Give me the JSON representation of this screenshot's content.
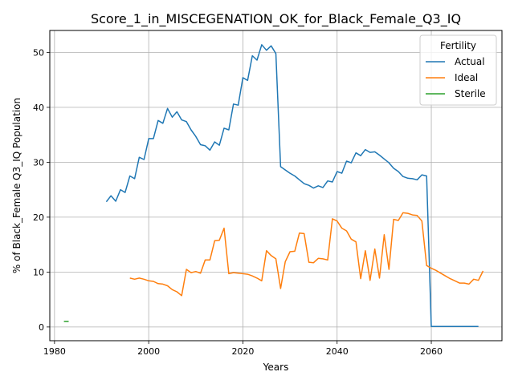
{
  "chart_data": {
    "type": "line",
    "title": "Score_1_in_MISCEGENATION_OK_for_Black_Female_Q3_IQ",
    "xlabel": "Years",
    "ylabel": "% of Black_Female Q3_IQ Population",
    "xlim": [
      1979,
      2075
    ],
    "ylim": [
      -2.5,
      54
    ],
    "xticks": [
      1980,
      2000,
      2020,
      2040,
      2060
    ],
    "yticks": [
      0,
      10,
      20,
      30,
      40,
      50
    ],
    "grid": true,
    "legend": {
      "title": "Fertility",
      "placement": "top-right"
    },
    "series": [
      {
        "name": "Actual",
        "color": "#1f77b4",
        "points": [
          [
            1991,
            22.8
          ],
          [
            1992,
            23.9
          ],
          [
            1993,
            22.9
          ],
          [
            1994,
            25.0
          ],
          [
            1995,
            24.5
          ],
          [
            1996,
            27.5
          ],
          [
            1997,
            27.0
          ],
          [
            1998,
            30.9
          ],
          [
            1999,
            30.5
          ],
          [
            2000,
            34.3
          ],
          [
            2001,
            34.3
          ],
          [
            2002,
            37.6
          ],
          [
            2003,
            37.1
          ],
          [
            2004,
            39.8
          ],
          [
            2005,
            38.2
          ],
          [
            2006,
            39.2
          ],
          [
            2007,
            37.7
          ],
          [
            2008,
            37.4
          ],
          [
            2009,
            35.9
          ],
          [
            2010,
            34.7
          ],
          [
            2011,
            33.2
          ],
          [
            2012,
            33.0
          ],
          [
            2013,
            32.2
          ],
          [
            2014,
            33.7
          ],
          [
            2015,
            33.1
          ],
          [
            2016,
            36.2
          ],
          [
            2017,
            35.9
          ],
          [
            2018,
            40.6
          ],
          [
            2019,
            40.4
          ],
          [
            2020,
            45.4
          ],
          [
            2021,
            44.9
          ],
          [
            2022,
            49.4
          ],
          [
            2023,
            48.6
          ],
          [
            2024,
            51.4
          ],
          [
            2025,
            50.4
          ],
          [
            2026,
            51.2
          ],
          [
            2027,
            49.8
          ],
          [
            2028,
            29.2
          ],
          [
            2029,
            28.6
          ],
          [
            2030,
            28.0
          ],
          [
            2031,
            27.5
          ],
          [
            2032,
            26.8
          ],
          [
            2033,
            26.1
          ],
          [
            2034,
            25.8
          ],
          [
            2035,
            25.3
          ],
          [
            2036,
            25.7
          ],
          [
            2037,
            25.4
          ],
          [
            2038,
            26.6
          ],
          [
            2039,
            26.4
          ],
          [
            2040,
            28.3
          ],
          [
            2041,
            28.0
          ],
          [
            2042,
            30.2
          ],
          [
            2043,
            29.9
          ],
          [
            2044,
            31.7
          ],
          [
            2045,
            31.2
          ],
          [
            2046,
            32.3
          ],
          [
            2047,
            31.8
          ],
          [
            2048,
            31.9
          ],
          [
            2049,
            31.3
          ],
          [
            2050,
            30.6
          ],
          [
            2051,
            29.9
          ],
          [
            2052,
            28.9
          ],
          [
            2053,
            28.3
          ],
          [
            2054,
            27.4
          ],
          [
            2055,
            27.1
          ],
          [
            2056,
            27.0
          ],
          [
            2057,
            26.8
          ],
          [
            2058,
            27.7
          ],
          [
            2059,
            27.5
          ],
          [
            2060,
            0.1
          ],
          [
            2062,
            0.1
          ],
          [
            2064,
            0.1
          ],
          [
            2066,
            0.1
          ],
          [
            2068,
            0.1
          ],
          [
            2070,
            0.1
          ]
        ]
      },
      {
        "name": "Ideal",
        "color": "#ff7f0e",
        "points": [
          [
            1996,
            8.9
          ],
          [
            1997,
            8.7
          ],
          [
            1998,
            8.9
          ],
          [
            1999,
            8.7
          ],
          [
            2000,
            8.4
          ],
          [
            2001,
            8.3
          ],
          [
            2002,
            7.9
          ],
          [
            2003,
            7.8
          ],
          [
            2004,
            7.5
          ],
          [
            2005,
            6.8
          ],
          [
            2006,
            6.4
          ],
          [
            2007,
            5.7
          ],
          [
            2008,
            10.5
          ],
          [
            2009,
            9.9
          ],
          [
            2010,
            10.1
          ],
          [
            2011,
            9.8
          ],
          [
            2012,
            12.2
          ],
          [
            2013,
            12.2
          ],
          [
            2014,
            15.7
          ],
          [
            2015,
            15.8
          ],
          [
            2016,
            18.0
          ],
          [
            2017,
            9.7
          ],
          [
            2018,
            9.9
          ],
          [
            2019,
            9.8
          ],
          [
            2020,
            9.7
          ],
          [
            2021,
            9.6
          ],
          [
            2022,
            9.3
          ],
          [
            2023,
            8.9
          ],
          [
            2024,
            8.4
          ],
          [
            2025,
            13.9
          ],
          [
            2026,
            13.0
          ],
          [
            2027,
            12.4
          ],
          [
            2028,
            7.0
          ],
          [
            2029,
            11.9
          ],
          [
            2030,
            13.7
          ],
          [
            2031,
            13.8
          ],
          [
            2032,
            17.1
          ],
          [
            2033,
            17.0
          ],
          [
            2034,
            11.8
          ],
          [
            2035,
            11.7
          ],
          [
            2036,
            12.5
          ],
          [
            2037,
            12.4
          ],
          [
            2038,
            12.2
          ],
          [
            2039,
            19.7
          ],
          [
            2040,
            19.3
          ],
          [
            2041,
            18.0
          ],
          [
            2042,
            17.5
          ],
          [
            2043,
            16.0
          ],
          [
            2044,
            15.5
          ],
          [
            2045,
            8.8
          ],
          [
            2046,
            13.9
          ],
          [
            2047,
            8.5
          ],
          [
            2048,
            14.2
          ],
          [
            2049,
            8.9
          ],
          [
            2050,
            16.8
          ],
          [
            2051,
            10.5
          ],
          [
            2052,
            19.6
          ],
          [
            2053,
            19.4
          ],
          [
            2054,
            20.8
          ],
          [
            2055,
            20.7
          ],
          [
            2056,
            20.4
          ],
          [
            2057,
            20.3
          ],
          [
            2058,
            19.3
          ],
          [
            2059,
            11.2
          ],
          [
            2060,
            10.7
          ],
          [
            2061,
            10.3
          ],
          [
            2062,
            9.8
          ],
          [
            2063,
            9.3
          ],
          [
            2064,
            8.8
          ],
          [
            2065,
            8.4
          ],
          [
            2066,
            8.0
          ],
          [
            2067,
            8.0
          ],
          [
            2068,
            7.8
          ],
          [
            2069,
            8.7
          ],
          [
            2070,
            8.5
          ],
          [
            2071,
            10.2
          ]
        ]
      },
      {
        "name": "Sterile",
        "color": "#2ca02c",
        "points": [
          [
            1982,
            1.0
          ],
          [
            1983,
            1.0
          ]
        ]
      }
    ]
  }
}
